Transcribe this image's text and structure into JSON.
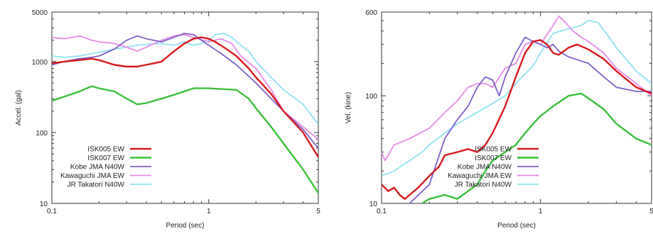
{
  "chart_data": [
    {
      "type": "line",
      "title": "",
      "xlabel": "Period (sec)",
      "ylabel": "Accel. (gal)",
      "xscale": "log",
      "yscale": "log",
      "xlim": [
        0.1,
        5
      ],
      "ylim": [
        10,
        5000
      ],
      "xticks": [
        0.1,
        1,
        5
      ],
      "xtick_labels": [
        "0.1",
        "1",
        "5"
      ],
      "yticks": [
        10,
        100,
        1000,
        5000
      ],
      "ytick_labels": [
        "10",
        "100",
        "1000",
        "5000"
      ],
      "grid": false,
      "legend_position": "bottom-left",
      "series": [
        {
          "name": "ISK005 EW",
          "color": "#d7191c",
          "width": 2.4,
          "points": [
            [
              0.1,
              950
            ],
            [
              0.12,
              1000
            ],
            [
              0.15,
              1050
            ],
            [
              0.18,
              1100
            ],
            [
              0.2,
              1050
            ],
            [
              0.25,
              900
            ],
            [
              0.3,
              850
            ],
            [
              0.35,
              850
            ],
            [
              0.4,
              900
            ],
            [
              0.45,
              950
            ],
            [
              0.5,
              1000
            ],
            [
              0.6,
              1400
            ],
            [
              0.7,
              1800
            ],
            [
              0.8,
              2100
            ],
            [
              0.9,
              2200
            ],
            [
              1.0,
              2100
            ],
            [
              1.1,
              1900
            ],
            [
              1.3,
              1500
            ],
            [
              1.5,
              1200
            ],
            [
              1.8,
              800
            ],
            [
              2.0,
              600
            ],
            [
              2.5,
              350
            ],
            [
              3.0,
              200
            ],
            [
              4.0,
              100
            ],
            [
              5.0,
              45
            ]
          ]
        },
        {
          "name": "ISK007 EW",
          "color": "#3ac13a",
          "width": 2.4,
          "points": [
            [
              0.1,
              280
            ],
            [
              0.12,
              320
            ],
            [
              0.15,
              380
            ],
            [
              0.18,
              450
            ],
            [
              0.2,
              420
            ],
            [
              0.25,
              380
            ],
            [
              0.3,
              300
            ],
            [
              0.35,
              250
            ],
            [
              0.4,
              260
            ],
            [
              0.5,
              300
            ],
            [
              0.6,
              340
            ],
            [
              0.7,
              380
            ],
            [
              0.8,
              420
            ],
            [
              1.0,
              420
            ],
            [
              1.2,
              410
            ],
            [
              1.5,
              400
            ],
            [
              1.8,
              300
            ],
            [
              2.0,
              220
            ],
            [
              2.5,
              120
            ],
            [
              3.0,
              70
            ],
            [
              4.0,
              30
            ],
            [
              5.0,
              14
            ]
          ]
        },
        {
          "name": "Kobe JMA N40W",
          "color": "#7f5fc9",
          "width": 1.8,
          "points": [
            [
              0.1,
              900
            ],
            [
              0.12,
              1000
            ],
            [
              0.15,
              1100
            ],
            [
              0.18,
              1150
            ],
            [
              0.2,
              1200
            ],
            [
              0.25,
              1500
            ],
            [
              0.3,
              2000
            ],
            [
              0.35,
              2300
            ],
            [
              0.4,
              2100
            ],
            [
              0.5,
              1900
            ],
            [
              0.6,
              2200
            ],
            [
              0.7,
              2500
            ],
            [
              0.8,
              2400
            ],
            [
              0.9,
              2000
            ],
            [
              1.0,
              1700
            ],
            [
              1.2,
              1300
            ],
            [
              1.5,
              900
            ],
            [
              2.0,
              500
            ],
            [
              2.5,
              300
            ],
            [
              3.0,
              200
            ],
            [
              4.0,
              110
            ],
            [
              5.0,
              60
            ]
          ]
        },
        {
          "name": "Kawaguchi JMA EW",
          "color": "#e58be5",
          "width": 1.8,
          "points": [
            [
              0.1,
              2200
            ],
            [
              0.12,
              2100
            ],
            [
              0.15,
              2300
            ],
            [
              0.18,
              2000
            ],
            [
              0.2,
              1900
            ],
            [
              0.25,
              1800
            ],
            [
              0.3,
              1600
            ],
            [
              0.35,
              1400
            ],
            [
              0.4,
              1600
            ],
            [
              0.5,
              2000
            ],
            [
              0.6,
              2300
            ],
            [
              0.7,
              2400
            ],
            [
              0.8,
              2200
            ],
            [
              1.0,
              1900
            ],
            [
              1.2,
              2100
            ],
            [
              1.4,
              1800
            ],
            [
              1.6,
              1200
            ],
            [
              2.0,
              800
            ],
            [
              2.5,
              400
            ],
            [
              3.0,
              200
            ],
            [
              4.0,
              120
            ],
            [
              5.0,
              80
            ]
          ]
        },
        {
          "name": "JR Takatori N40W",
          "color": "#8fe3ef",
          "width": 1.8,
          "points": [
            [
              0.1,
              1200
            ],
            [
              0.12,
              1150
            ],
            [
              0.15,
              1200
            ],
            [
              0.18,
              1300
            ],
            [
              0.2,
              1350
            ],
            [
              0.25,
              1500
            ],
            [
              0.3,
              1600
            ],
            [
              0.35,
              1700
            ],
            [
              0.4,
              1750
            ],
            [
              0.5,
              1800
            ],
            [
              0.6,
              1700
            ],
            [
              0.7,
              1900
            ],
            [
              0.8,
              1700
            ],
            [
              0.9,
              1800
            ],
            [
              1.0,
              2000
            ],
            [
              1.1,
              2400
            ],
            [
              1.25,
              2500
            ],
            [
              1.4,
              2200
            ],
            [
              1.6,
              1700
            ],
            [
              1.8,
              1400
            ],
            [
              2.0,
              1000
            ],
            [
              2.5,
              600
            ],
            [
              3.0,
              400
            ],
            [
              4.0,
              250
            ],
            [
              5.0,
              130
            ]
          ]
        }
      ]
    },
    {
      "type": "line",
      "title": "",
      "xlabel": "Period (sec)",
      "ylabel": "Vel. (kine)",
      "xscale": "log",
      "yscale": "log",
      "xlim": [
        0.1,
        5
      ],
      "ylim": [
        10,
        600
      ],
      "xticks": [
        0.1,
        1,
        5
      ],
      "xtick_labels": [
        "0.1",
        "1",
        "5"
      ],
      "yticks": [
        10,
        100,
        600
      ],
      "ytick_labels": [
        "10",
        "100",
        "600"
      ],
      "grid": false,
      "legend_position": "bottom-right",
      "series": [
        {
          "name": "ISK005 EW",
          "color": "#d7191c",
          "width": 2.4,
          "points": [
            [
              0.1,
              15
            ],
            [
              0.11,
              13
            ],
            [
              0.12,
              14
            ],
            [
              0.13,
              12
            ],
            [
              0.14,
              11
            ],
            [
              0.15,
              12
            ],
            [
              0.17,
              14
            ],
            [
              0.2,
              18
            ],
            [
              0.23,
              22
            ],
            [
              0.25,
              28
            ],
            [
              0.3,
              30
            ],
            [
              0.35,
              32
            ],
            [
              0.4,
              30
            ],
            [
              0.45,
              35
            ],
            [
              0.5,
              45
            ],
            [
              0.6,
              80
            ],
            [
              0.7,
              150
            ],
            [
              0.8,
              250
            ],
            [
              0.9,
              320
            ],
            [
              1.0,
              330
            ],
            [
              1.1,
              300
            ],
            [
              1.2,
              250
            ],
            [
              1.3,
              240
            ],
            [
              1.5,
              280
            ],
            [
              1.7,
              300
            ],
            [
              2.0,
              270
            ],
            [
              2.5,
              220
            ],
            [
              3.0,
              170
            ],
            [
              4.0,
              120
            ],
            [
              5.0,
              105
            ]
          ]
        },
        {
          "name": "ISK007 EW",
          "color": "#3ac13a",
          "width": 2.4,
          "points": [
            [
              0.18,
              10
            ],
            [
              0.2,
              11
            ],
            [
              0.25,
              12
            ],
            [
              0.3,
              11
            ],
            [
              0.35,
              13
            ],
            [
              0.4,
              15
            ],
            [
              0.45,
              20
            ],
            [
              0.5,
              25
            ],
            [
              0.6,
              30
            ],
            [
              0.7,
              35
            ],
            [
              0.8,
              45
            ],
            [
              0.9,
              55
            ],
            [
              1.0,
              65
            ],
            [
              1.2,
              80
            ],
            [
              1.5,
              100
            ],
            [
              1.8,
              105
            ],
            [
              2.0,
              95
            ],
            [
              2.5,
              75
            ],
            [
              3.0,
              55
            ],
            [
              4.0,
              40
            ],
            [
              5.0,
              35
            ]
          ]
        },
        {
          "name": "Kobe JMA N40W",
          "color": "#7f5fc9",
          "width": 1.8,
          "points": [
            [
              0.15,
              10
            ],
            [
              0.2,
              15
            ],
            [
              0.25,
              40
            ],
            [
              0.3,
              60
            ],
            [
              0.35,
              80
            ],
            [
              0.4,
              120
            ],
            [
              0.45,
              150
            ],
            [
              0.5,
              140
            ],
            [
              0.55,
              100
            ],
            [
              0.6,
              150
            ],
            [
              0.7,
              250
            ],
            [
              0.8,
              350
            ],
            [
              0.9,
              320
            ],
            [
              1.0,
              300
            ],
            [
              1.1,
              280
            ],
            [
              1.2,
              300
            ],
            [
              1.3,
              260
            ],
            [
              1.5,
              230
            ],
            [
              2.0,
              200
            ],
            [
              2.5,
              150
            ],
            [
              3.0,
              120
            ],
            [
              4.0,
              110
            ],
            [
              5.0,
              110
            ]
          ]
        },
        {
          "name": "Kawaguchi JMA EW",
          "color": "#e58be5",
          "width": 1.8,
          "points": [
            [
              0.1,
              30
            ],
            [
              0.105,
              25
            ],
            [
              0.11,
              28
            ],
            [
              0.12,
              35
            ],
            [
              0.15,
              40
            ],
            [
              0.2,
              50
            ],
            [
              0.25,
              70
            ],
            [
              0.3,
              90
            ],
            [
              0.35,
              120
            ],
            [
              0.4,
              130
            ],
            [
              0.45,
              130
            ],
            [
              0.5,
              120
            ],
            [
              0.6,
              180
            ],
            [
              0.7,
              200
            ],
            [
              0.8,
              300
            ],
            [
              0.9,
              320
            ],
            [
              1.0,
              300
            ],
            [
              1.2,
              450
            ],
            [
              1.3,
              550
            ],
            [
              1.4,
              500
            ],
            [
              1.6,
              400
            ],
            [
              1.8,
              350
            ],
            [
              2.0,
              320
            ],
            [
              2.5,
              250
            ],
            [
              3.0,
              180
            ],
            [
              4.0,
              130
            ],
            [
              5.0,
              100
            ]
          ]
        },
        {
          "name": "JR Takatori N40W",
          "color": "#8fe3ef",
          "width": 1.8,
          "points": [
            [
              0.1,
              18
            ],
            [
              0.12,
              20
            ],
            [
              0.15,
              25
            ],
            [
              0.18,
              30
            ],
            [
              0.2,
              35
            ],
            [
              0.25,
              45
            ],
            [
              0.3,
              55
            ],
            [
              0.4,
              70
            ],
            [
              0.5,
              85
            ],
            [
              0.6,
              100
            ],
            [
              0.7,
              130
            ],
            [
              0.8,
              160
            ],
            [
              0.9,
              190
            ],
            [
              1.0,
              250
            ],
            [
              1.2,
              380
            ],
            [
              1.5,
              420
            ],
            [
              1.8,
              450
            ],
            [
              2.0,
              500
            ],
            [
              2.3,
              480
            ],
            [
              2.7,
              350
            ],
            [
              3.0,
              280
            ],
            [
              4.0,
              170
            ],
            [
              5.0,
              130
            ]
          ]
        }
      ]
    }
  ]
}
